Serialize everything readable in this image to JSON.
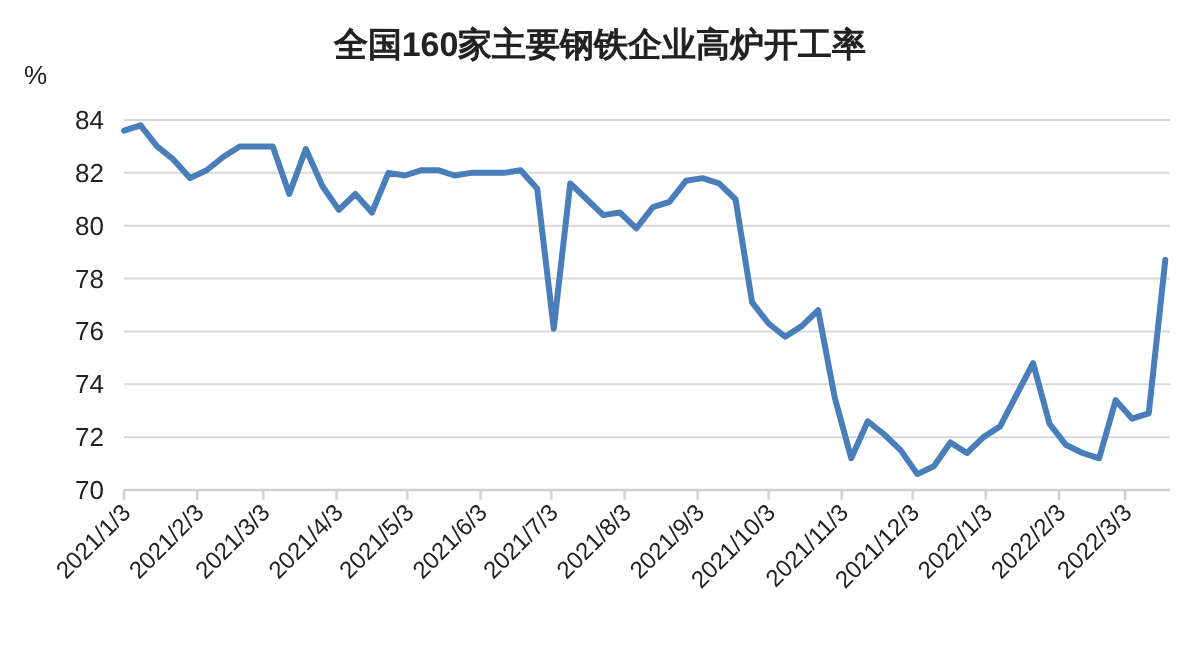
{
  "chart_data": {
    "type": "line",
    "title": "全国160家主要钢铁企业高炉开工率",
    "ylabel": "%",
    "x": [
      "2021-01-03",
      "2021-01-10",
      "2021-01-17",
      "2021-01-24",
      "2021-01-31",
      "2021-02-07",
      "2021-02-14",
      "2021-02-21",
      "2021-02-28",
      "2021-03-07",
      "2021-03-14",
      "2021-03-21",
      "2021-03-28",
      "2021-04-04",
      "2021-04-11",
      "2021-04-18",
      "2021-04-25",
      "2021-05-02",
      "2021-05-09",
      "2021-05-16",
      "2021-05-23",
      "2021-05-30",
      "2021-06-06",
      "2021-06-13",
      "2021-06-20",
      "2021-06-27",
      "2021-07-04",
      "2021-07-11",
      "2021-07-18",
      "2021-07-25",
      "2021-08-01",
      "2021-08-08",
      "2021-08-15",
      "2021-08-22",
      "2021-08-29",
      "2021-09-05",
      "2021-09-12",
      "2021-09-19",
      "2021-09-26",
      "2021-10-03",
      "2021-10-10",
      "2021-10-17",
      "2021-10-24",
      "2021-10-31",
      "2021-11-07",
      "2021-11-14",
      "2021-11-21",
      "2021-11-28",
      "2021-12-05",
      "2021-12-12",
      "2021-12-19",
      "2021-12-26",
      "2022-01-02",
      "2022-01-09",
      "2022-01-16",
      "2022-01-23",
      "2022-01-30",
      "2022-02-06",
      "2022-02-13",
      "2022-02-20",
      "2022-02-27",
      "2022-03-06",
      "2022-03-13",
      "2022-03-20"
    ],
    "series": [
      {
        "color": "#4a7ebb",
        "values": [
          83.6,
          83.8,
          83.0,
          82.5,
          81.8,
          82.1,
          82.6,
          83.0,
          83.0,
          83.0,
          81.2,
          82.9,
          81.5,
          80.6,
          81.2,
          80.5,
          82.0,
          81.9,
          82.1,
          82.1,
          81.9,
          82.0,
          82.0,
          82.0,
          82.1,
          81.4,
          76.1,
          81.6,
          81.0,
          80.4,
          80.5,
          79.9,
          80.7,
          80.9,
          81.7,
          81.8,
          81.6,
          81.0,
          77.1,
          76.3,
          75.8,
          76.2,
          76.8,
          73.5,
          71.2,
          72.6,
          72.1,
          71.5,
          70.6,
          70.9,
          71.8,
          71.4,
          72.0,
          72.4,
          73.6,
          74.8,
          72.5,
          71.7,
          71.4,
          71.2,
          73.4,
          72.7,
          72.9,
          78.7
        ]
      }
    ],
    "xlim": [
      "2021-01-03",
      "2022-03-22"
    ],
    "xticks": [
      {
        "value": "2021-01-03",
        "label": "2021/1/3"
      },
      {
        "value": "2021-02-03",
        "label": "2021/2/3"
      },
      {
        "value": "2021-03-03",
        "label": "2021/3/3"
      },
      {
        "value": "2021-04-03",
        "label": "2021/4/3"
      },
      {
        "value": "2021-05-03",
        "label": "2021/5/3"
      },
      {
        "value": "2021-06-03",
        "label": "2021/6/3"
      },
      {
        "value": "2021-07-03",
        "label": "2021/7/3"
      },
      {
        "value": "2021-08-03",
        "label": "2021/8/3"
      },
      {
        "value": "2021-09-03",
        "label": "2021/9/3"
      },
      {
        "value": "2021-10-03",
        "label": "2021/10/3"
      },
      {
        "value": "2021-11-03",
        "label": "2021/11/3"
      },
      {
        "value": "2021-12-03",
        "label": "2021/12/3"
      },
      {
        "value": "2022-01-03",
        "label": "2022/1/3"
      },
      {
        "value": "2022-02-03",
        "label": "2022/2/3"
      },
      {
        "value": "2022-03-03",
        "label": "2022/3/3"
      }
    ],
    "ylim": [
      70,
      84
    ],
    "yticks": [
      70,
      72,
      74,
      76,
      78,
      80,
      82,
      84
    ],
    "grid": "y",
    "marker": "none",
    "line_style": "solid"
  }
}
